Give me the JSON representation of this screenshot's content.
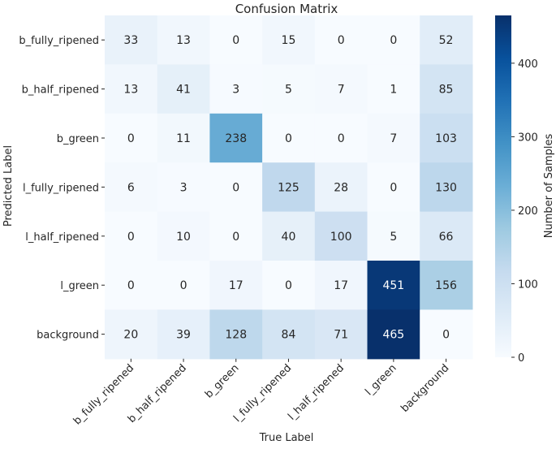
{
  "chart_data": {
    "type": "heatmap",
    "title": "Confusion Matrix",
    "xlabel": "True Label",
    "ylabel": "Predicted Label",
    "x_categories": [
      "b_fully_ripened",
      "b_half_ripened",
      "b_green",
      "l_fully_ripened",
      "l_half_ripened",
      "l_green",
      "background"
    ],
    "y_categories": [
      "b_fully_ripened",
      "b_half_ripened",
      "b_green",
      "l_fully_ripened",
      "l_half_ripened",
      "l_green",
      "background"
    ],
    "values": [
      [
        33,
        13,
        0,
        15,
        0,
        0,
        52
      ],
      [
        13,
        41,
        3,
        5,
        7,
        1,
        85
      ],
      [
        0,
        11,
        238,
        0,
        0,
        7,
        103
      ],
      [
        6,
        3,
        0,
        125,
        28,
        0,
        130
      ],
      [
        0,
        10,
        0,
        40,
        100,
        5,
        66
      ],
      [
        0,
        0,
        17,
        0,
        17,
        451,
        156
      ],
      [
        20,
        39,
        128,
        84,
        71,
        465,
        0
      ]
    ],
    "colorbar": {
      "label": "Number of Samples",
      "range": [
        0,
        465
      ],
      "ticks": [
        0,
        100,
        200,
        300,
        400
      ]
    },
    "colormap": "Blues",
    "text_color_light": "#ffffff",
    "text_color_dark": "#262626"
  }
}
